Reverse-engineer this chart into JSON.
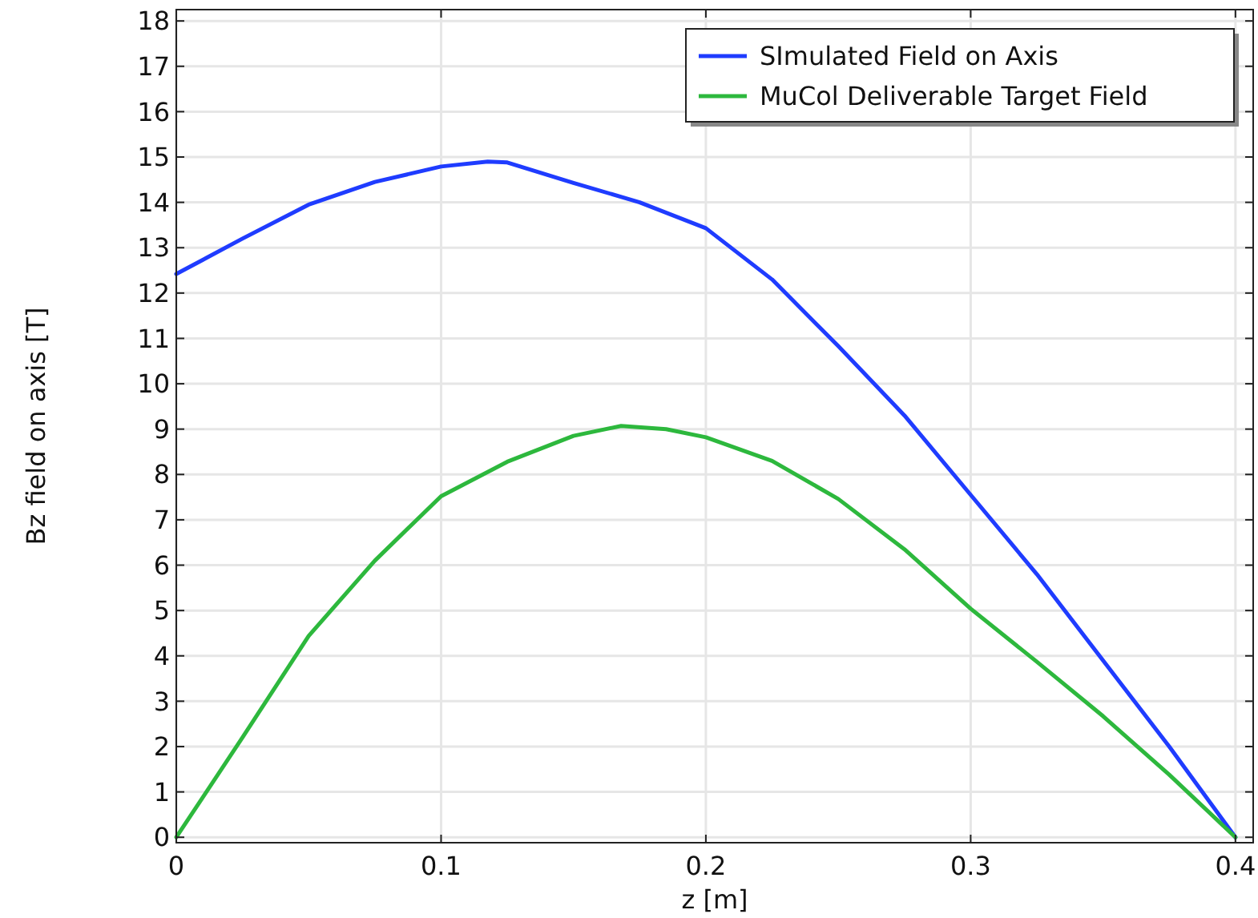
{
  "chart_data": {
    "type": "line",
    "xlabel": "z [m]",
    "ylabel": "Bz field on axis [T]",
    "xlim": [
      0,
      0.4067
    ],
    "ylim": [
      -0.12,
      18.25
    ],
    "xticks": [
      0,
      0.1,
      0.2,
      0.3,
      0.4
    ],
    "yticks": [
      0,
      1,
      2,
      3,
      4,
      5,
      6,
      7,
      8,
      9,
      10,
      11,
      12,
      13,
      14,
      15,
      16,
      17,
      18
    ],
    "grid": true,
    "legend": "top right",
    "line_style": "solid",
    "marker": "none",
    "series": [
      {
        "name": "SImulated Field on Axis",
        "color": "#1f3cff",
        "x": [
          0,
          0.025,
          0.05,
          0.075,
          0.1,
          0.1176,
          0.125,
          0.15,
          0.175,
          0.2,
          0.225,
          0.25,
          0.275,
          0.3,
          0.325,
          0.35,
          0.375,
          0.4
        ],
        "values": [
          12.42,
          13.2,
          13.95,
          14.45,
          14.79,
          14.9,
          14.88,
          14.43,
          14.0,
          13.43,
          12.3,
          10.83,
          9.3,
          7.55,
          5.8,
          3.9,
          2.0,
          0
        ]
      },
      {
        "name": "MuCol Deliverable Target Field",
        "color": "#2db83d",
        "x": [
          0,
          0.025,
          0.05,
          0.075,
          0.1,
          0.125,
          0.15,
          0.168,
          0.185,
          0.2,
          0.225,
          0.25,
          0.275,
          0.3,
          0.325,
          0.35,
          0.375,
          0.4
        ],
        "values": [
          0,
          2.2,
          4.44,
          6.1,
          7.52,
          8.28,
          8.85,
          9.07,
          9.0,
          8.82,
          8.3,
          7.46,
          6.35,
          5.04,
          3.87,
          2.67,
          1.38,
          0
        ]
      }
    ]
  }
}
